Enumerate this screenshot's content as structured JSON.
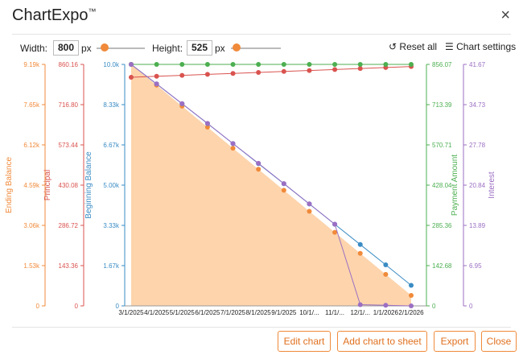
{
  "window": {
    "title": "ChartExpo",
    "trademark": "™",
    "close_glyph": "×"
  },
  "controls": {
    "width_label": "Width:",
    "width_value": "800",
    "height_label": "Height:",
    "height_value": "525",
    "px_unit": "px",
    "reset_label": "Reset all",
    "settings_label": "Chart settings"
  },
  "buttons": {
    "edit": "Edit chart",
    "add_sheet": "Add chart to sheet",
    "export": "Export",
    "close": "Close"
  },
  "colors": {
    "accent": "#f08a3a",
    "ending_balance": "#f08a3a",
    "principal": "#d9534f",
    "beginning_balance": "#3a8cc4",
    "payment_amount": "#4caf50",
    "interest": "#9b6fc3",
    "area_fill": "#fdd4ac"
  },
  "chart_data": {
    "type": "line",
    "x_categories": [
      "3/1/2025",
      "4/1/2025",
      "5/1/2025",
      "6/1/2025",
      "7/1/2025",
      "8/1/2025",
      "9/1/2025",
      "10/1/...",
      "11/1/...",
      "12/1/...",
      "1/1/2026",
      "2/1/2026"
    ],
    "axes": [
      {
        "name": "Ending Balance",
        "ticks": [
          "0",
          "1.53k",
          "3.06k",
          "4.59k",
          "6.12k",
          "7.65k",
          "9.19k"
        ],
        "range": [
          0,
          9190
        ]
      },
      {
        "name": "Principal",
        "ticks": [
          "0",
          "143.36",
          "286.72",
          "430.08",
          "573.44",
          "716.80",
          "860.16"
        ],
        "range": [
          0,
          860.16
        ]
      },
      {
        "name": "Beginning Balance",
        "ticks": [
          "0",
          "1.67k",
          "3.33k",
          "5.00k",
          "6.67k",
          "8.33k",
          "10.0k"
        ],
        "range": [
          0,
          10000
        ]
      },
      {
        "name": "Payment Amount",
        "ticks": [
          "0",
          "142.68",
          "285.36",
          "428.04",
          "570.71",
          "713.39",
          "856.07"
        ],
        "range": [
          0,
          856.07
        ]
      },
      {
        "name": "Interest",
        "ticks": [
          "0",
          "6.95",
          "13.89",
          "20.84",
          "27.78",
          "34.73",
          "41.67"
        ],
        "range": [
          0,
          41.67
        ]
      }
    ],
    "series": [
      {
        "name": "Ending Balance",
        "axis": 0,
        "values": [
          9190,
          8400,
          7600,
          6800,
          6000,
          5200,
          4400,
          3600,
          2800,
          2000,
          1200,
          400
        ]
      },
      {
        "name": "Principal",
        "axis": 1,
        "values": [
          814.4,
          817.8,
          821.2,
          824.6,
          828.0,
          831.5,
          834.9,
          838.4,
          841.9,
          845.4,
          849.0,
          852.5
        ]
      },
      {
        "name": "Beginning Balance",
        "axis": 2,
        "values": [
          10000,
          9190,
          8370,
          7550,
          6720,
          5890,
          5060,
          4220,
          3380,
          2540,
          1700,
          850
        ]
      },
      {
        "name": "Payment Amount",
        "axis": 3,
        "values": [
          856.07,
          856.07,
          856.07,
          856.07,
          856.07,
          856.07,
          856.07,
          856.07,
          856.07,
          856.07,
          856.07,
          856.07
        ]
      },
      {
        "name": "Interest",
        "axis": 4,
        "values": [
          41.67,
          38.3,
          34.9,
          31.5,
          28.0,
          24.6,
          21.1,
          17.6,
          14.1,
          0.2,
          0.1,
          0.0
        ]
      }
    ]
  }
}
